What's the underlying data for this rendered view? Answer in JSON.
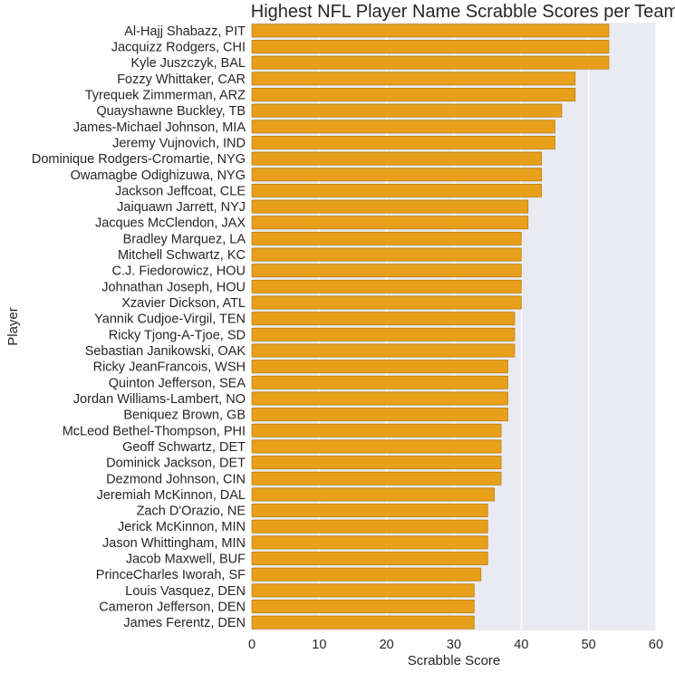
{
  "chart_data": {
    "type": "bar",
    "orientation": "horizontal",
    "title": "Highest NFL Player Name Scrabble Scores per Team",
    "xlabel": "Scrabble Score",
    "ylabel": "Player",
    "xlim": [
      0,
      60
    ],
    "xticks": [
      "0",
      "10",
      "20",
      "30",
      "40",
      "50",
      "60"
    ],
    "grid": true,
    "bar_color": "#e89f1a",
    "background_color": "#eaeaf2",
    "categories": [
      "Al-Hajj Shabazz, PIT",
      "Jacquizz Rodgers, CHI",
      "Kyle Juszczyk, BAL",
      "Fozzy Whittaker, CAR",
      "Tyrequek Zimmerman, ARZ",
      "Quayshawne Buckley, TB",
      "James-Michael Johnson, MIA",
      "Jeremy Vujnovich, IND",
      "Dominique Rodgers-Cromartie, NYG",
      "Owamagbe Odighizuwa, NYG",
      "Jackson Jeffcoat, CLE",
      "Jaiquawn Jarrett, NYJ",
      "Jacques McClendon, JAX",
      "Bradley Marquez, LA",
      "Mitchell Schwartz, KC",
      "C.J. Fiedorowicz, HOU",
      "Johnathan Joseph, HOU",
      "Xzavier Dickson, ATL",
      "Yannik Cudjoe-Virgil, TEN",
      "Ricky Tjong-A-Tjoe, SD",
      "Sebastian Janikowski, OAK",
      "Ricky JeanFrancois, WSH",
      "Quinton Jefferson, SEA",
      "Jordan Williams-Lambert, NO",
      "Beniquez Brown, GB",
      "McLeod Bethel-Thompson, PHI",
      "Geoff Schwartz, DET",
      "Dominick Jackson, DET",
      "Dezmond Johnson, CIN",
      "Jeremiah McKinnon, DAL",
      "Zach D'Orazio, NE",
      "Jerick McKinnon, MIN",
      "Jason Whittingham, MIN",
      "Jacob Maxwell, BUF",
      "PrinceCharles Iworah, SF",
      "Louis Vasquez, DEN",
      "Cameron Jefferson, DEN",
      "James Ferentz, DEN"
    ],
    "values": [
      53,
      53,
      53,
      48,
      48,
      46,
      45,
      45,
      43,
      43,
      43,
      41,
      41,
      40,
      40,
      40,
      40,
      40,
      39,
      39,
      39,
      38,
      38,
      38,
      38,
      37,
      37,
      37,
      37,
      36,
      35,
      35,
      35,
      35,
      34,
      33,
      33,
      33
    ]
  }
}
